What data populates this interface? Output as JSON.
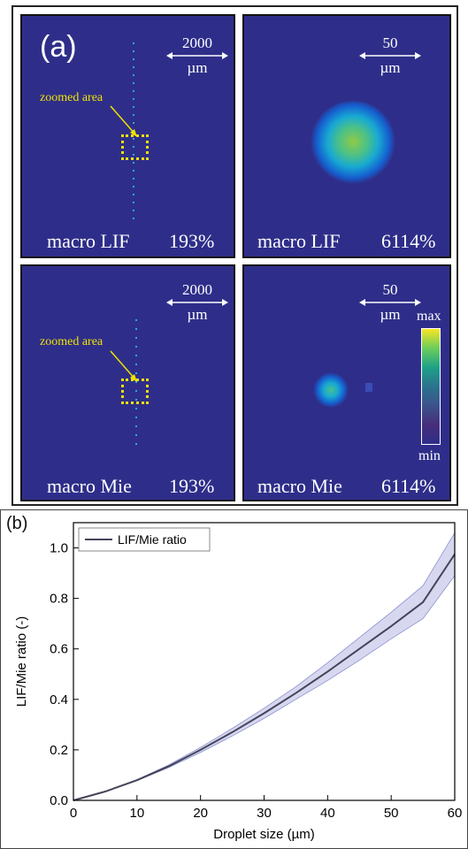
{
  "figure_a": {
    "panel_label": "(a)",
    "panels": [
      {
        "label": "macro LIF",
        "percent": "193%",
        "scale_value": "2000",
        "scale_unit": "µm",
        "zoom_label": "zoomed area"
      },
      {
        "label": "macro LIF",
        "percent": "6114%",
        "scale_value": "50",
        "scale_unit": "µm"
      },
      {
        "label": "macro Mie",
        "percent": "193%",
        "scale_value": "2000",
        "scale_unit": "µm",
        "zoom_label": "zoomed area"
      },
      {
        "label": "macro Mie",
        "percent": "6114%",
        "scale_value": "50",
        "scale_unit": "µm",
        "colorbar_max": "max",
        "colorbar_min": "min"
      }
    ]
  },
  "figure_b": {
    "panel_label": "(b)",
    "colors": {
      "line": "#44445a",
      "band": "#8b8fd0"
    },
    "chart_data": {
      "type": "line",
      "xlabel": "Droplet size (µm)",
      "ylabel": "LIF/Mie ratio (-)",
      "xlim": [
        0,
        60
      ],
      "ylim": [
        0,
        1.1
      ],
      "xticks": [
        0,
        10,
        20,
        30,
        40,
        50,
        60
      ],
      "yticks": [
        0.0,
        0.2,
        0.4,
        0.6,
        0.8,
        1.0
      ],
      "legend": "top-left",
      "series": [
        {
          "name": "LIF/Mie ratio",
          "x": [
            0,
            5,
            10,
            15,
            20,
            25,
            30,
            35,
            40,
            45,
            50,
            55,
            60
          ],
          "y": [
            0,
            0.035,
            0.08,
            0.135,
            0.2,
            0.27,
            0.345,
            0.425,
            0.51,
            0.6,
            0.69,
            0.785,
            0.975
          ],
          "y_low": [
            0,
            0.034,
            0.078,
            0.13,
            0.19,
            0.255,
            0.325,
            0.4,
            0.475,
            0.555,
            0.64,
            0.72,
            0.89
          ],
          "y_high": [
            0,
            0.036,
            0.082,
            0.14,
            0.21,
            0.285,
            0.365,
            0.45,
            0.545,
            0.645,
            0.745,
            0.85,
            1.06
          ]
        }
      ]
    }
  }
}
